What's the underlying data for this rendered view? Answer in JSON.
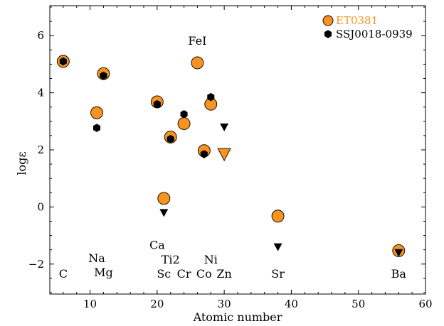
{
  "chart_data": {
    "type": "scatter",
    "title": "",
    "xlabel": "Atomic number",
    "ylabel": "logε",
    "xlim": [
      4,
      60
    ],
    "ylim": [
      -3.05,
      7.05
    ],
    "xticks": [
      10,
      20,
      30,
      40,
      50,
      60
    ],
    "yticks": [
      -2,
      0,
      2,
      4,
      6
    ],
    "grid": false,
    "legend": "top-right",
    "series": [
      {
        "name": "ET0381",
        "marker": "circle",
        "color": "#f7931e",
        "points": [
          {
            "x": 6,
            "y": 5.1
          },
          {
            "x": 11,
            "y": 3.3
          },
          {
            "x": 12,
            "y": 4.67
          },
          {
            "x": 20,
            "y": 3.68
          },
          {
            "x": 21,
            "y": 0.3
          },
          {
            "x": 22,
            "y": 2.45
          },
          {
            "x": 24,
            "y": 2.92
          },
          {
            "x": 26,
            "y": 5.05
          },
          {
            "x": 27,
            "y": 1.97
          },
          {
            "x": 28,
            "y": 3.6
          },
          {
            "x": 38,
            "y": -0.32
          },
          {
            "x": 56,
            "y": -1.53
          }
        ],
        "upper_limits": [
          {
            "x": 30,
            "y": 1.85
          }
        ]
      },
      {
        "name": "SSJ0018-0939",
        "marker": "hexagon",
        "color": "#000000",
        "points": [
          {
            "x": 6,
            "y": 5.1
          },
          {
            "x": 11,
            "y": 2.77
          },
          {
            "x": 12,
            "y": 4.6
          },
          {
            "x": 20,
            "y": 3.6
          },
          {
            "x": 22,
            "y": 2.38
          },
          {
            "x": 24,
            "y": 3.25
          },
          {
            "x": 27,
            "y": 1.85
          },
          {
            "x": 28,
            "y": 3.85
          }
        ],
        "upper_limits": [
          {
            "x": 21,
            "y": -0.2
          },
          {
            "x": 30,
            "y": 2.8
          },
          {
            "x": 38,
            "y": -1.4
          },
          {
            "x": 56,
            "y": -1.6
          }
        ]
      }
    ],
    "annotations": [
      {
        "text": "FeI",
        "x": 26,
        "y": 5.8
      },
      {
        "text": "C",
        "x": 6,
        "y": -2.35
      },
      {
        "text": "Na",
        "x": 11,
        "y": -1.8
      },
      {
        "text": "Mg",
        "x": 12,
        "y": -2.3
      },
      {
        "text": "Ca",
        "x": 20,
        "y": -1.35
      },
      {
        "text": "Ti2",
        "x": 22,
        "y": -1.85
      },
      {
        "text": "Sc",
        "x": 21,
        "y": -2.35
      },
      {
        "text": "Cr",
        "x": 24,
        "y": -2.35
      },
      {
        "text": "Ni",
        "x": 28,
        "y": -1.85
      },
      {
        "text": "Co",
        "x": 27,
        "y": -2.35
      },
      {
        "text": "Zn",
        "x": 30,
        "y": -2.35
      },
      {
        "text": "Sr",
        "x": 38,
        "y": -2.35
      },
      {
        "text": "Ba",
        "x": 56,
        "y": -2.35
      }
    ]
  }
}
